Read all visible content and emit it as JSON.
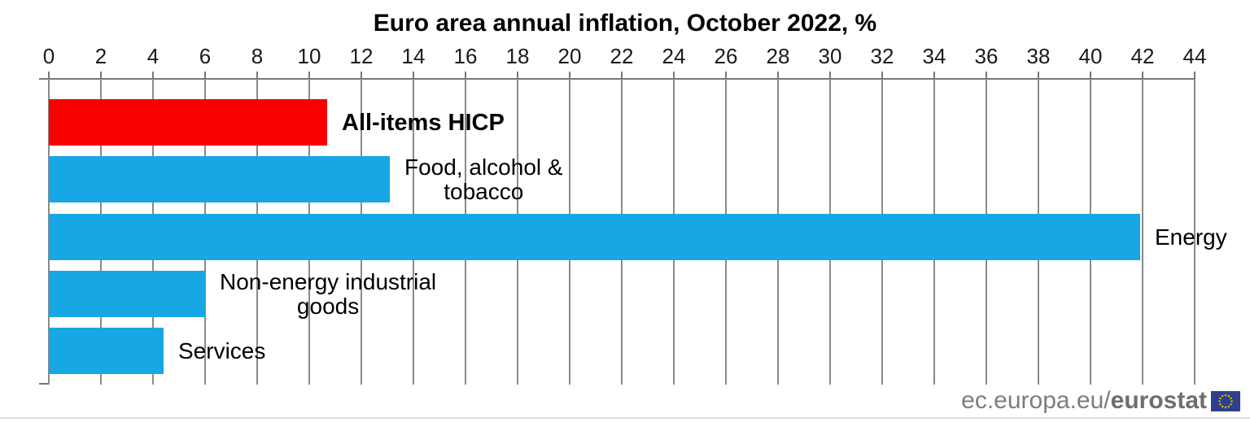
{
  "chart_data": {
    "type": "bar",
    "orientation": "horizontal",
    "title": "Euro area annual inflation, October 2022, %",
    "categories": [
      "All-items HICP",
      "Food, alcohol &\ntobacco",
      "Energy",
      "Non-energy industrial\ngoods",
      "Services"
    ],
    "values": [
      10.7,
      13.1,
      41.9,
      6.0,
      4.4
    ],
    "label_bold": [
      true,
      false,
      false,
      false,
      false
    ],
    "bar_colors": [
      "#f80000",
      "#17a7e5",
      "#17a7e5",
      "#17a7e5",
      "#17a7e5"
    ],
    "xlabel": "",
    "ylabel": "",
    "xlim": [
      0,
      44
    ],
    "x_ticks": [
      0,
      2,
      4,
      6,
      8,
      10,
      12,
      14,
      16,
      18,
      20,
      22,
      24,
      26,
      28,
      30,
      32,
      34,
      36,
      38,
      40,
      42,
      44
    ],
    "axis_position": "top",
    "grid": true,
    "legend": false
  },
  "colors": {
    "highlight_red": "#f80000",
    "bar_blue": "#17a7e5",
    "grid_gray": "#8a8a8a",
    "axis_gray": "#767676",
    "footer_gray": "#7d7d7d",
    "flag_blue": "#2e3f8f",
    "star_gold": "#c8b400"
  },
  "footer": {
    "site_regular": "ec.europa.eu/",
    "site_bold": "eurostat"
  }
}
